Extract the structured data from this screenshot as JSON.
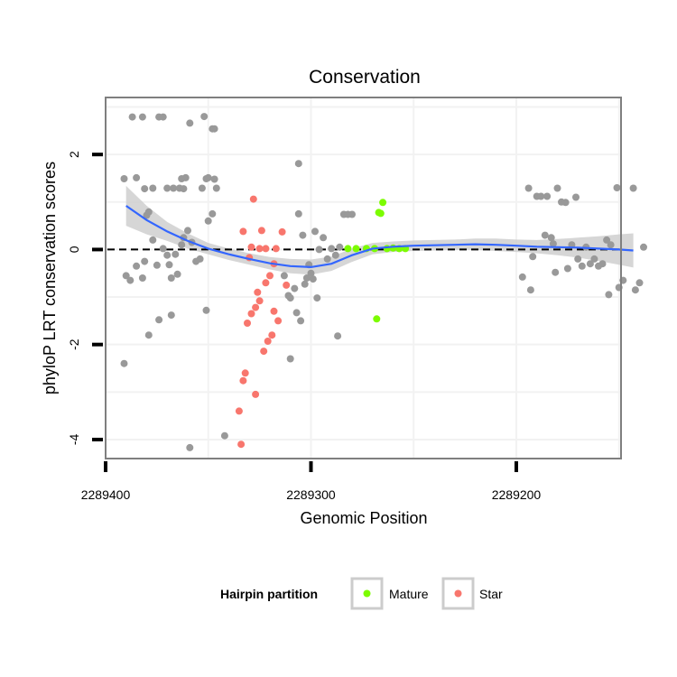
{
  "chart_data": {
    "type": "scatter",
    "title": "Conservation",
    "xlabel": "Genomic Position",
    "ylabel": "phyloP LRT conservation scores",
    "x_reversed": true,
    "xlim": [
      2289149,
      2289400
    ],
    "ylim": [
      -4.4,
      3.2
    ],
    "x_ticks": [
      2289400,
      2289300,
      2289200
    ],
    "x_tick_labels": [
      "2289400",
      "2289300",
      "2289200"
    ],
    "y_ticks": [
      2,
      0,
      -2,
      -4
    ],
    "y_tick_labels": [
      "2",
      "0",
      "-2",
      "-4"
    ],
    "reference_line": {
      "y": 0,
      "style": "dashed"
    },
    "grid": true,
    "legend": {
      "title": "Hairpin partition",
      "position": "bottom",
      "entries": [
        {
          "label": "Mature",
          "color": "#7CFC00"
        },
        {
          "label": "Star",
          "color": "#F8766D"
        }
      ]
    },
    "colors": {
      "other": "#999999",
      "Mature": "#7CFC00",
      "Star": "#F8766D",
      "smooth": "#3366FF",
      "band": "#CCCCCC"
    },
    "series": [
      {
        "name": "Other",
        "points": [
          [
            2289391,
            1.49
          ],
          [
            2289387,
            2.79
          ],
          [
            2289385,
            1.51
          ],
          [
            2289382,
            2.79
          ],
          [
            2289381,
            1.28
          ],
          [
            2289377,
            1.29
          ],
          [
            2289374,
            2.79
          ],
          [
            2289372,
            2.79
          ],
          [
            2289370,
            1.29
          ],
          [
            2289367,
            1.29
          ],
          [
            2289363,
            1.49
          ],
          [
            2289361,
            1.51
          ],
          [
            2289364,
            1.29
          ],
          [
            2289362,
            1.28
          ],
          [
            2289359,
            2.66
          ],
          [
            2289353,
            1.29
          ],
          [
            2289352,
            2.8
          ],
          [
            2289351,
            1.49
          ],
          [
            2289350,
            1.51
          ],
          [
            2289348,
            2.54
          ],
          [
            2289347,
            2.54
          ],
          [
            2289346,
            1.29
          ],
          [
            2289347,
            1.48
          ],
          [
            2289390,
            -0.55
          ],
          [
            2289388,
            -0.65
          ],
          [
            2289385,
            -0.35
          ],
          [
            2289382,
            -0.6
          ],
          [
            2289381,
            -0.25
          ],
          [
            2289380,
            0.72
          ],
          [
            2289379,
            0.79
          ],
          [
            2289377,
            0.2
          ],
          [
            2289375,
            -0.33
          ],
          [
            2289372,
            0.02
          ],
          [
            2289370,
            -0.12
          ],
          [
            2289369,
            -0.32
          ],
          [
            2289368,
            -0.6
          ],
          [
            2289366,
            -0.1
          ],
          [
            2289365,
            -0.52
          ],
          [
            2289363,
            0.1
          ],
          [
            2289362,
            0.25
          ],
          [
            2289360,
            0.4
          ],
          [
            2289358,
            0.15
          ],
          [
            2289356,
            -0.25
          ],
          [
            2289354,
            -0.2
          ],
          [
            2289351,
            -1.28
          ],
          [
            2289350,
            0.6
          ],
          [
            2289348,
            0.75
          ],
          [
            2289391,
            -2.4
          ],
          [
            2289379,
            -1.8
          ],
          [
            2289374,
            -1.48
          ],
          [
            2289368,
            -1.38
          ],
          [
            2289359,
            -4.17
          ],
          [
            2289342,
            -3.92
          ],
          [
            2289306,
            1.81
          ],
          [
            2289313,
            -0.55
          ],
          [
            2289311,
            -0.97
          ],
          [
            2289310,
            -1.02
          ],
          [
            2289308,
            -0.82
          ],
          [
            2289307,
            -1.33
          ],
          [
            2289305,
            -1.5
          ],
          [
            2289303,
            -0.73
          ],
          [
            2289302,
            -0.6
          ],
          [
            2289301,
            -0.32
          ],
          [
            2289299,
            -0.62
          ],
          [
            2289297,
            -1.02
          ],
          [
            2289298,
            0.38
          ],
          [
            2289296,
            0.0
          ],
          [
            2289294,
            0.25
          ],
          [
            2289292,
            -0.2
          ],
          [
            2289290,
            0.02
          ],
          [
            2289288,
            -0.12
          ],
          [
            2289287,
            -1.82
          ],
          [
            2289286,
            0.05
          ],
          [
            2289284,
            0.74
          ],
          [
            2289282,
            0.74
          ],
          [
            2289280,
            0.74
          ],
          [
            2289300,
            -0.5
          ],
          [
            2289306,
            0.75
          ],
          [
            2289310,
            -2.3
          ],
          [
            2289304,
            0.3
          ],
          [
            2289194,
            1.29
          ],
          [
            2289197,
            -0.58
          ],
          [
            2289193,
            -0.85
          ],
          [
            2289190,
            1.12
          ],
          [
            2289188,
            1.12
          ],
          [
            2289185,
            1.12
          ],
          [
            2289183,
            0.25
          ],
          [
            2289182,
            0.12
          ],
          [
            2289180,
            1.29
          ],
          [
            2289178,
            1.0
          ],
          [
            2289176,
            0.99
          ],
          [
            2289175,
            -0.4
          ],
          [
            2289173,
            0.1
          ],
          [
            2289171,
            1.1
          ],
          [
            2289170,
            -0.2
          ],
          [
            2289168,
            -0.35
          ],
          [
            2289166,
            0.05
          ],
          [
            2289164,
            -0.3
          ],
          [
            2289162,
            -0.2
          ],
          [
            2289160,
            -0.35
          ],
          [
            2289158,
            -0.3
          ],
          [
            2289156,
            0.2
          ],
          [
            2289154,
            0.1
          ],
          [
            2289151,
            1.3
          ],
          [
            2289155,
            -0.95
          ],
          [
            2289150,
            -0.8
          ],
          [
            2289148,
            -0.65
          ],
          [
            2289143,
            1.29
          ],
          [
            2289142,
            -0.85
          ],
          [
            2289140,
            -0.7
          ],
          [
            2289138,
            0.05
          ],
          [
            2289192,
            -0.15
          ],
          [
            2289186,
            0.3
          ],
          [
            2289181,
            -0.48
          ]
        ]
      },
      {
        "name": "Mature",
        "points": [
          [
            2289265,
            0.99
          ],
          [
            2289266,
            0.76
          ],
          [
            2289267,
            0.78
          ],
          [
            2289268,
            -1.46
          ],
          [
            2289273,
            0.02
          ],
          [
            2289269,
            0.02
          ],
          [
            2289263,
            0.02
          ],
          [
            2289260,
            0.03
          ],
          [
            2289257,
            0.02
          ],
          [
            2289254,
            0.02
          ],
          [
            2289278,
            0.02
          ],
          [
            2289282,
            0.02
          ]
        ]
      },
      {
        "name": "Star",
        "points": [
          [
            2289328,
            1.06
          ],
          [
            2289333,
            0.38
          ],
          [
            2289325,
            0.02
          ],
          [
            2289322,
            0.02
          ],
          [
            2289324,
            0.4
          ],
          [
            2289330,
            -0.17
          ],
          [
            2289314,
            0.37
          ],
          [
            2289317,
            0.02
          ],
          [
            2289318,
            -0.3
          ],
          [
            2289320,
            -0.55
          ],
          [
            2289322,
            -0.7
          ],
          [
            2289325,
            -1.08
          ],
          [
            2289327,
            -1.22
          ],
          [
            2289329,
            -1.35
          ],
          [
            2289331,
            -1.55
          ],
          [
            2289318,
            -1.3
          ],
          [
            2289316,
            -1.5
          ],
          [
            2289319,
            -1.8
          ],
          [
            2289321,
            -1.93
          ],
          [
            2289323,
            -2.14
          ],
          [
            2289326,
            -0.9
          ],
          [
            2289332,
            -2.6
          ],
          [
            2289333,
            -2.76
          ],
          [
            2289327,
            -3.05
          ],
          [
            2289335,
            -3.4
          ],
          [
            2289334,
            -4.1
          ],
          [
            2289329,
            0.05
          ],
          [
            2289312,
            -0.75
          ]
        ]
      }
    ],
    "smooth": {
      "x": [
        2289390,
        2289380,
        2289370,
        2289360,
        2289350,
        2289340,
        2289330,
        2289320,
        2289310,
        2289300,
        2289290,
        2289280,
        2289270,
        2289260,
        2289250,
        2289240,
        2289230,
        2289220,
        2289210,
        2289200,
        2289190,
        2289180,
        2289170,
        2289160,
        2289150,
        2289143
      ],
      "y": [
        0.92,
        0.62,
        0.38,
        0.18,
        0.02,
        -0.1,
        -0.2,
        -0.29,
        -0.35,
        -0.37,
        -0.3,
        -0.12,
        0.02,
        0.06,
        0.08,
        0.09,
        0.1,
        0.11,
        0.1,
        0.08,
        0.06,
        0.05,
        0.04,
        0.02,
        0.0,
        -0.02
      ],
      "lo": [
        0.5,
        0.32,
        0.18,
        0.02,
        -0.1,
        -0.22,
        -0.32,
        -0.42,
        -0.5,
        -0.53,
        -0.45,
        -0.26,
        -0.1,
        -0.05,
        -0.03,
        -0.02,
        -0.01,
        -0.01,
        -0.03,
        -0.05,
        -0.08,
        -0.12,
        -0.17,
        -0.24,
        -0.32,
        -0.38
      ],
      "hi": [
        1.34,
        0.92,
        0.58,
        0.34,
        0.14,
        0.02,
        -0.08,
        -0.16,
        -0.2,
        -0.21,
        -0.15,
        0.02,
        0.14,
        0.17,
        0.19,
        0.2,
        0.21,
        0.23,
        0.23,
        0.21,
        0.2,
        0.22,
        0.25,
        0.28,
        0.32,
        0.34
      ]
    }
  }
}
